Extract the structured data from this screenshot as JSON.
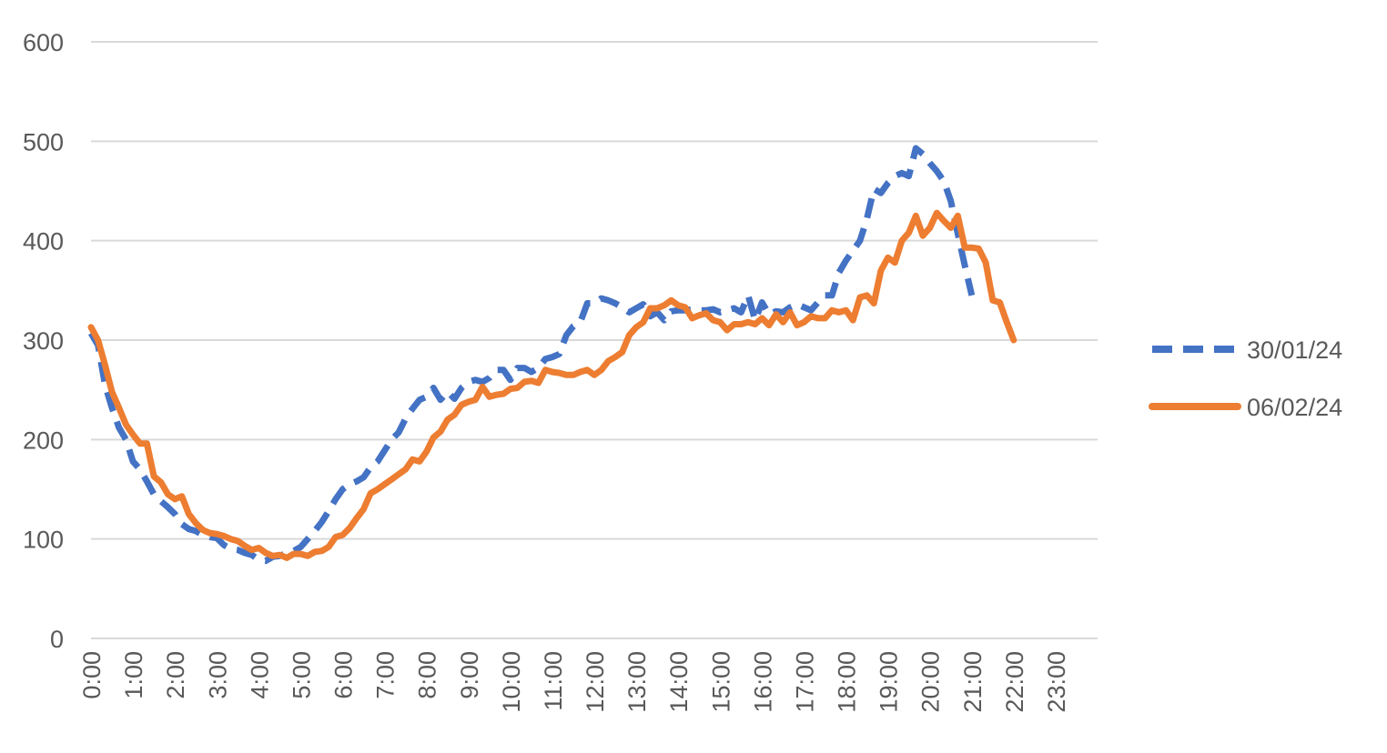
{
  "chart_data": {
    "type": "line",
    "title": "",
    "xlabel": "",
    "ylabel": "",
    "ylim": [
      0,
      600
    ],
    "yticks": [
      0,
      100,
      200,
      300,
      400,
      500,
      600
    ],
    "grid": true,
    "legend_position": "right",
    "x_interval_minutes": 10,
    "x_tick_labels": [
      "0:00",
      "1:00",
      "2:00",
      "3:00",
      "4:00",
      "5:00",
      "6:00",
      "7:00",
      "8:00",
      "9:00",
      "10:00",
      "11:00",
      "12:00",
      "13:00",
      "14:00",
      "15:00",
      "16:00",
      "17:00",
      "18:00",
      "19:00",
      "20:00",
      "21:00",
      "22:00",
      "23:00"
    ],
    "series": [
      {
        "name": "30/01/24",
        "style": "dashed",
        "color": "#4472C4",
        "values": [
          307,
          295,
          255,
          232,
          212,
          200,
          178,
          170,
          158,
          145,
          138,
          132,
          125,
          115,
          110,
          108,
          104,
          102,
          101,
          94,
          90,
          89,
          86,
          84,
          79,
          78,
          82,
          83,
          86,
          88,
          92,
          100,
          108,
          117,
          128,
          140,
          150,
          155,
          158,
          162,
          172,
          178,
          189,
          200,
          207,
          221,
          231,
          240,
          243,
          252,
          240,
          248,
          241,
          252,
          258,
          260,
          258,
          262,
          270,
          270,
          260,
          272,
          272,
          268,
          272,
          281,
          283,
          286,
          305,
          314,
          318,
          337,
          337,
          342,
          340,
          337,
          333,
          328,
          332,
          336,
          324,
          328,
          320,
          329,
          330,
          330,
          331,
          330,
          330,
          331,
          328,
          330,
          332,
          328,
          345,
          320,
          338,
          326,
          329,
          328,
          333,
          336,
          333,
          330,
          338,
          345,
          345,
          368,
          380,
          390,
          400,
          422,
          452,
          448,
          458,
          465,
          468,
          465,
          493,
          487,
          478,
          470,
          460,
          440,
          407,
          375,
          345
        ]
      },
      {
        "name": "06/02/24",
        "style": "solid",
        "color": "#ED7D31",
        "values": [
          313,
          300,
          275,
          248,
          232,
          215,
          205,
          196,
          196,
          163,
          157,
          145,
          140,
          143,
          125,
          116,
          109,
          106,
          105,
          103,
          100,
          98,
          93,
          89,
          91,
          86,
          83,
          84,
          81,
          85,
          85,
          83,
          87,
          88,
          92,
          102,
          104,
          111,
          121,
          130,
          146,
          150,
          155,
          160,
          165,
          170,
          180,
          178,
          188,
          202,
          208,
          220,
          225,
          235,
          238,
          240,
          253,
          243,
          245,
          246,
          251,
          252,
          258,
          259,
          257,
          270,
          268,
          267,
          265,
          265,
          268,
          270,
          265,
          270,
          279,
          283,
          288,
          305,
          313,
          318,
          332,
          332,
          335,
          340,
          335,
          333,
          322,
          325,
          327,
          320,
          318,
          310,
          316,
          316,
          318,
          316,
          322,
          315,
          326,
          318,
          328,
          315,
          318,
          324,
          322,
          322,
          330,
          328,
          330,
          320,
          343,
          345,
          337,
          370,
          383,
          378,
          400,
          408,
          425,
          405,
          413,
          428,
          420,
          413,
          425,
          393,
          393,
          392,
          378,
          340,
          338,
          318,
          300
        ]
      }
    ]
  }
}
